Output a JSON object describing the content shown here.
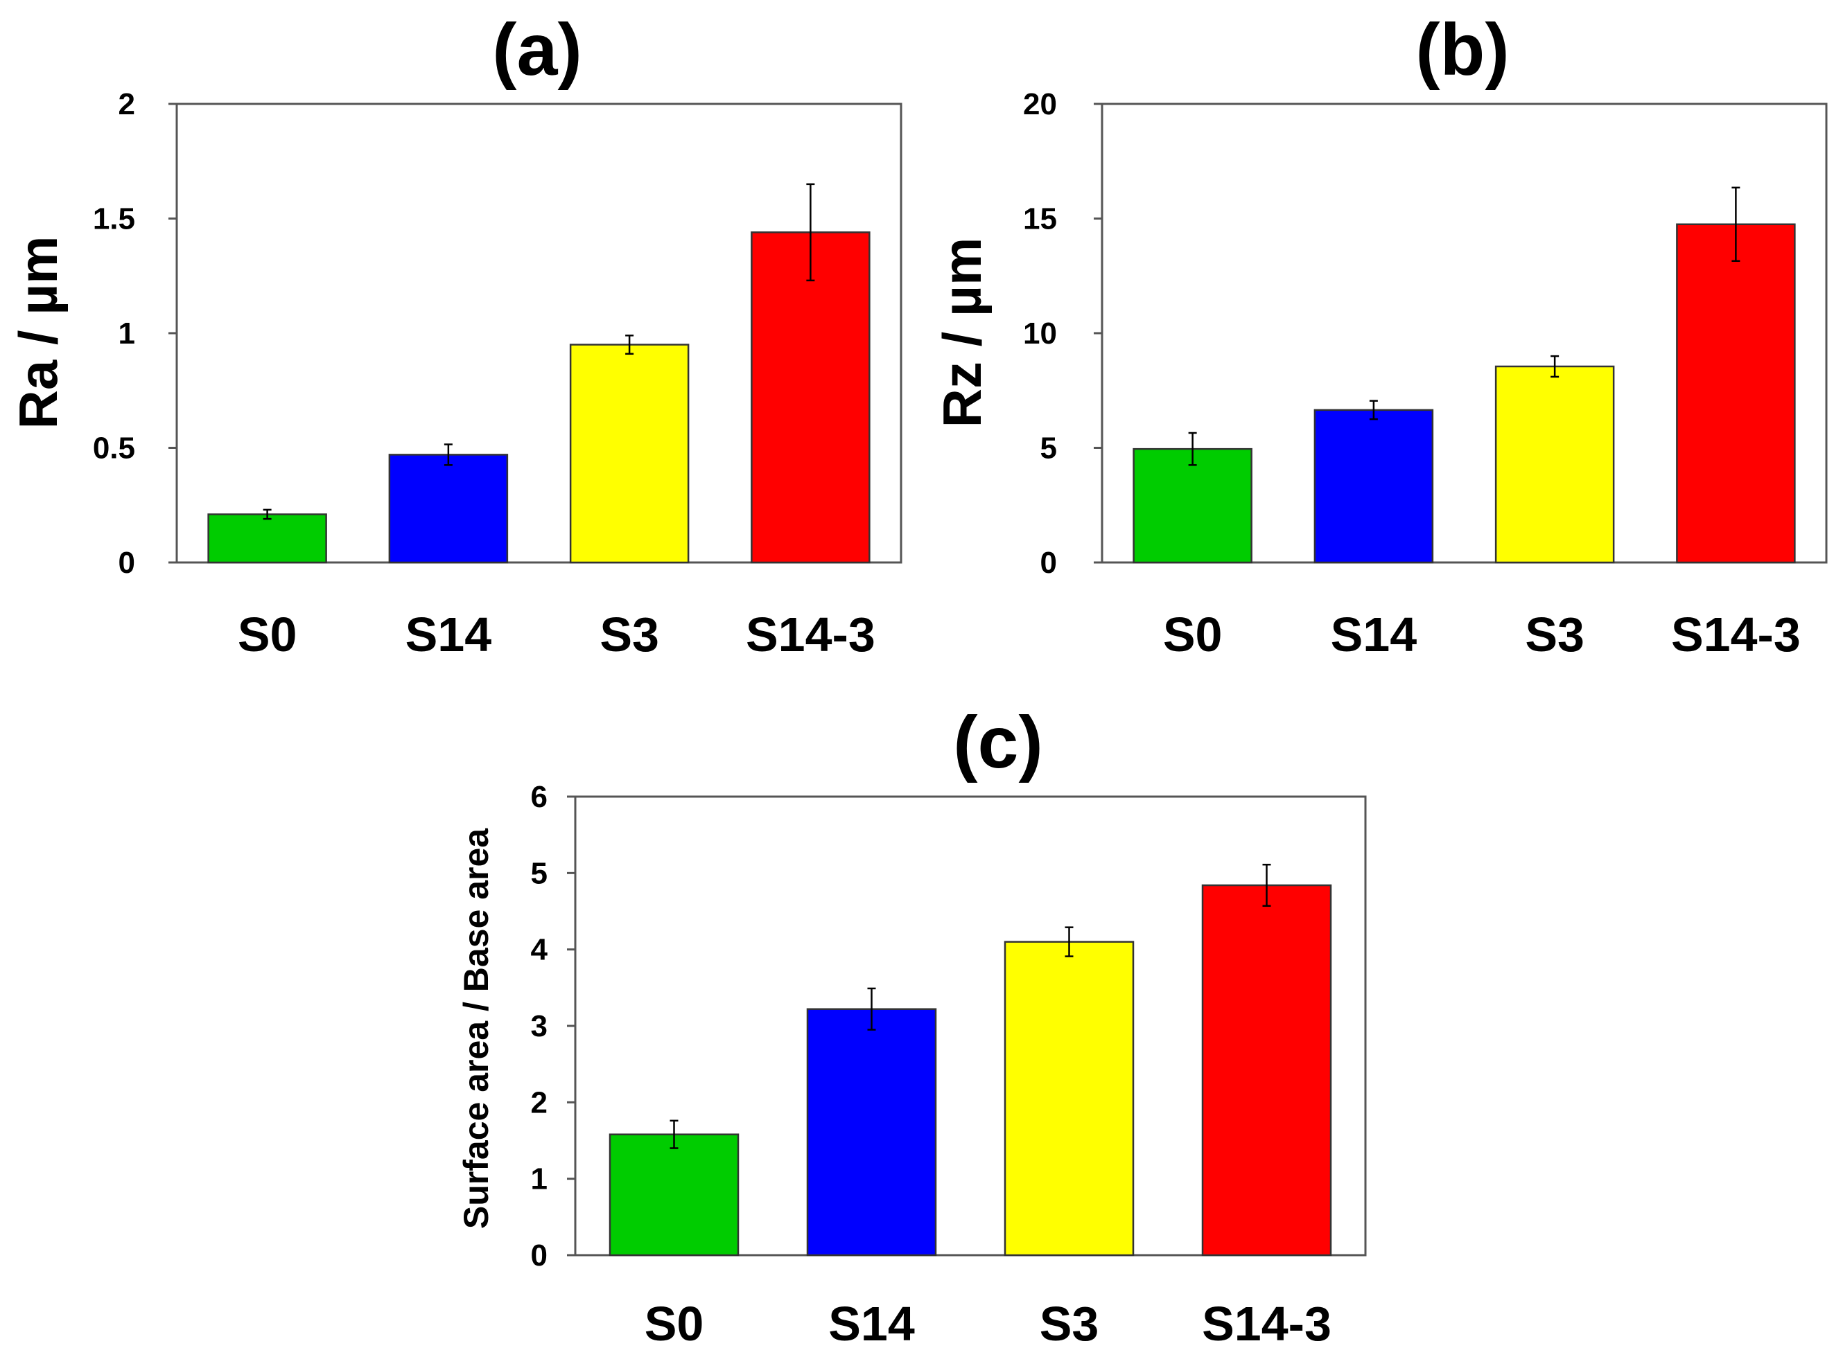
{
  "chart_data": [
    {
      "type": "bar",
      "title": "(a)",
      "ylabel": "Ra / µm",
      "xlabel": "",
      "categories": [
        "S0",
        "S14",
        "S3",
        "S14-3"
      ],
      "values": [
        0.21,
        0.47,
        0.95,
        1.44
      ],
      "errors": [
        0.02,
        0.045,
        0.04,
        0.21
      ],
      "colors": [
        "#00cc00",
        "#0000ff",
        "#ffff00",
        "#ff0000"
      ],
      "ylim": [
        0,
        2
      ],
      "yticks": [
        0,
        0.5,
        1,
        1.5,
        2
      ],
      "ytick_labels": [
        "0",
        "0.5",
        "1",
        "1.5",
        "2"
      ],
      "grid": false
    },
    {
      "type": "bar",
      "title": "(b)",
      "ylabel": "Rz / µm",
      "xlabel": "",
      "categories": [
        "S0",
        "S14",
        "S3",
        "S14-3"
      ],
      "values": [
        4.95,
        6.65,
        8.55,
        14.75
      ],
      "errors": [
        0.7,
        0.4,
        0.45,
        1.6
      ],
      "colors": [
        "#00cc00",
        "#0000ff",
        "#ffff00",
        "#ff0000"
      ],
      "ylim": [
        0,
        20
      ],
      "yticks": [
        0,
        5,
        10,
        15,
        20
      ],
      "ytick_labels": [
        "0",
        "5",
        "10",
        "15",
        "20"
      ],
      "grid": false
    },
    {
      "type": "bar",
      "title": "(c)",
      "ylabel": "Surface area / Base area",
      "xlabel": "",
      "categories": [
        "S0",
        "S14",
        "S3",
        "S14-3"
      ],
      "values": [
        1.58,
        3.22,
        4.1,
        4.84
      ],
      "errors": [
        0.18,
        0.27,
        0.19,
        0.27
      ],
      "colors": [
        "#00cc00",
        "#0000ff",
        "#ffff00",
        "#ff0000"
      ],
      "ylim": [
        0,
        6
      ],
      "yticks": [
        0,
        1,
        2,
        3,
        4,
        5,
        6
      ],
      "ytick_labels": [
        "0",
        "1",
        "2",
        "3",
        "4",
        "5",
        "6"
      ],
      "grid": false
    }
  ]
}
